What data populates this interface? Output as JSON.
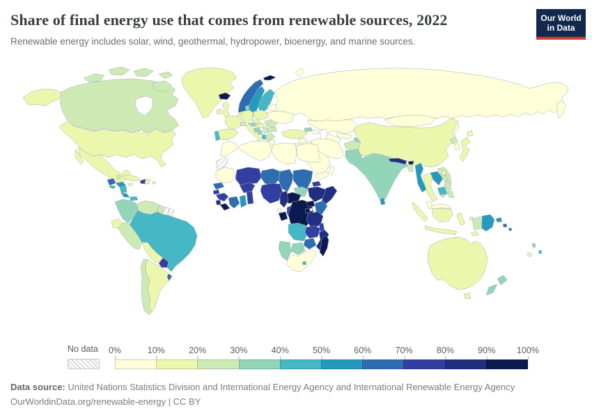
{
  "header": {
    "title": "Share of final energy use that comes from renewable sources, 2022",
    "subtitle": "Renewable energy includes solar, wind, geothermal, hydropower, bioenergy, and marine sources."
  },
  "logo": {
    "line1": "Our World",
    "line2": "in Data",
    "bg_color": "#12294b",
    "accent_color": "#d93a35"
  },
  "footer": {
    "source_label": "Data source:",
    "source_text": " United Nations Statistics Division and International Energy Agency and International Renewable Energy Agency",
    "url": "OurWorldinData.org/renewable-energy",
    "separator": " | ",
    "license": "CC BY"
  },
  "chart_data": {
    "type": "choropleth",
    "title": "Share of final energy use that comes from renewable sources, 2022",
    "unit": "%",
    "legend": {
      "no_data_label": "No data",
      "ticks": [
        "0%",
        "10%",
        "20%",
        "30%",
        "40%",
        "50%",
        "60%",
        "70%",
        "80%",
        "90%",
        "100%"
      ],
      "bucket_ranges": [
        "0-10%",
        "10-20%",
        "20-30%",
        "30-40%",
        "40-50%",
        "50-60%",
        "60-70%",
        "70-80%",
        "80-90%",
        "90-100%"
      ],
      "colors": [
        "#feffd8",
        "#ecf7ae",
        "#cdeab5",
        "#93d5b8",
        "#45b7c5",
        "#2599be",
        "#2e6db0",
        "#333fa0",
        "#202f80",
        "#0c1a50"
      ]
    },
    "regions": [
      {
        "id": "alaska",
        "name": "Alaska (United States)",
        "bucket": 1
      },
      {
        "id": "canada",
        "name": "Canada",
        "bucket": 2
      },
      {
        "id": "arctic1",
        "name": "Canadian Arctic Islands",
        "bucket": 2
      },
      {
        "id": "arctic2",
        "name": "Canadian Arctic Islands",
        "bucket": 2
      },
      {
        "id": "arctic3",
        "name": "Canadian Arctic Islands",
        "bucket": 2
      },
      {
        "id": "arctic4",
        "name": "Canadian Arctic Islands",
        "bucket": 2
      },
      {
        "id": "baffin",
        "name": "Baffin Island",
        "bucket": 2
      },
      {
        "id": "greenland",
        "name": "Greenland",
        "bucket": 1
      },
      {
        "id": "usa",
        "name": "United States",
        "bucket": 1
      },
      {
        "id": "baja",
        "name": "Baja California (Mexico)",
        "bucket": 1
      },
      {
        "id": "mexico",
        "name": "Mexico",
        "bucket": 1
      },
      {
        "id": "guatemala",
        "name": "Guatemala",
        "bucket": 6
      },
      {
        "id": "belize",
        "name": "Belize",
        "bucket": 2
      },
      {
        "id": "elsalvador",
        "name": "El Salvador",
        "bucket": 4
      },
      {
        "id": "honduras",
        "name": "Honduras",
        "bucket": 5
      },
      {
        "id": "nicaragua",
        "name": "Nicaragua",
        "bucket": 4
      },
      {
        "id": "costarica",
        "name": "Costa Rica",
        "bucket": 5
      },
      {
        "id": "panama",
        "name": "Panama",
        "bucket": 4
      },
      {
        "id": "cuba",
        "name": "Cuba",
        "bucket": 1
      },
      {
        "id": "jamaica",
        "name": "Jamaica",
        "bucket": 1
      },
      {
        "id": "haiti",
        "name": "Haiti",
        "bucket": 7
      },
      {
        "id": "domrep",
        "name": "Dominican Republic",
        "bucket": 1
      },
      {
        "id": "puertorico",
        "name": "Puerto Rico",
        "bucket": 1
      },
      {
        "id": "colombia",
        "name": "Colombia",
        "bucket": 3
      },
      {
        "id": "venezuela",
        "name": "Venezuela",
        "bucket": 2
      },
      {
        "id": "guyana",
        "name": "Guyana",
        "bucket": 2
      },
      {
        "id": "suriname",
        "name": "Suriname",
        "bucket": null
      },
      {
        "id": "frguiana",
        "name": "French Guiana",
        "bucket": null
      },
      {
        "id": "ecuador",
        "name": "Ecuador",
        "bucket": 1
      },
      {
        "id": "peru",
        "name": "Peru",
        "bucket": 2
      },
      {
        "id": "brazil",
        "name": "Brazil",
        "bucket": 4
      },
      {
        "id": "bolivia",
        "name": "Bolivia",
        "bucket": 1
      },
      {
        "id": "paraguay",
        "name": "Paraguay",
        "bucket": 7
      },
      {
        "id": "uruguay",
        "name": "Uruguay",
        "bucket": 6
      },
      {
        "id": "argentina",
        "name": "Argentina",
        "bucket": 1
      },
      {
        "id": "chile",
        "name": "Chile",
        "bucket": 2
      },
      {
        "id": "iceland",
        "name": "Iceland",
        "bucket": 9
      },
      {
        "id": "svalbard",
        "name": "Svalbard",
        "bucket": 9
      },
      {
        "id": "norway",
        "name": "Norway",
        "bucket": 6
      },
      {
        "id": "sweden",
        "name": "Sweden",
        "bucket": 5
      },
      {
        "id": "finland",
        "name": "Finland",
        "bucket": 4
      },
      {
        "id": "denmark",
        "name": "Denmark",
        "bucket": 3
      },
      {
        "id": "estonia",
        "name": "Estonia",
        "bucket": 3
      },
      {
        "id": "latvia",
        "name": "Latvia",
        "bucket": 4
      },
      {
        "id": "lithuania",
        "name": "Lithuania",
        "bucket": 2
      },
      {
        "id": "uk",
        "name": "United Kingdom",
        "bucket": 1
      },
      {
        "id": "ireland",
        "name": "Ireland",
        "bucket": 1
      },
      {
        "id": "france",
        "name": "France",
        "bucket": 1
      },
      {
        "id": "spain",
        "name": "Spain",
        "bucket": 1
      },
      {
        "id": "portugal",
        "name": "Portugal",
        "bucket": 4
      },
      {
        "id": "germany",
        "name": "Germany",
        "bucket": 1
      },
      {
        "id": "benelux",
        "name": "Belgium / Netherlands",
        "bucket": 1
      },
      {
        "id": "poland",
        "name": "Poland",
        "bucket": 1
      },
      {
        "id": "czech",
        "name": "Czechia",
        "bucket": 1
      },
      {
        "id": "italy",
        "name": "Italy",
        "bucket": 1
      },
      {
        "id": "sicily",
        "name": "Sicily (Italy)",
        "bucket": 1
      },
      {
        "id": "switzerland",
        "name": "Switzerland",
        "bucket": 2
      },
      {
        "id": "austria",
        "name": "Austria",
        "bucket": 3
      },
      {
        "id": "hungary",
        "name": "Hungary",
        "bucket": 1
      },
      {
        "id": "croatia",
        "name": "Croatia / Slovenia",
        "bucket": 3
      },
      {
        "id": "bosnia",
        "name": "Bosnia and Herzegovina",
        "bucket": 3
      },
      {
        "id": "serbia",
        "name": "Serbia",
        "bucket": 2
      },
      {
        "id": "albania",
        "name": "Albania / Montenegro",
        "bucket": 4
      },
      {
        "id": "romania",
        "name": "Romania",
        "bucket": 2
      },
      {
        "id": "bulgaria",
        "name": "Bulgaria",
        "bucket": 2
      },
      {
        "id": "greece",
        "name": "Greece",
        "bucket": 2
      },
      {
        "id": "ukraine",
        "name": "Ukraine",
        "bucket": 0
      },
      {
        "id": "belarus",
        "name": "Belarus",
        "bucket": 0
      },
      {
        "id": "turkey",
        "name": "Turkey",
        "bucket": 1
      },
      {
        "id": "georgia",
        "name": "Georgia",
        "bucket": 3
      },
      {
        "id": "azerbaijan",
        "name": "Azerbaijan",
        "bucket": 0
      },
      {
        "id": "russia",
        "name": "Russia",
        "bucket": 0
      },
      {
        "id": "novayazemlya",
        "name": "Novaya Zemlya (Russia)",
        "bucket": 0
      },
      {
        "id": "kamchatka",
        "name": "Kamchatka (Russia)",
        "bucket": 0
      },
      {
        "id": "sakhalin",
        "name": "Sakhalin (Russia)",
        "bucket": 0
      },
      {
        "id": "kazakhstan",
        "name": "Kazakhstan",
        "bucket": 0
      },
      {
        "id": "uzbekistan",
        "name": "Uzbekistan",
        "bucket": 0
      },
      {
        "id": "turkmenistan",
        "name": "Turkmenistan",
        "bucket": 0
      },
      {
        "id": "kyrgyzstan",
        "name": "Kyrgyzstan",
        "bucket": 2
      },
      {
        "id": "tajikistan",
        "name": "Tajikistan",
        "bucket": 3
      },
      {
        "id": "syria",
        "name": "Syria",
        "bucket": 0
      },
      {
        "id": "iraq",
        "name": "Iraq",
        "bucket": 0
      },
      {
        "id": "jordanisrael",
        "name": "Jordan / Israel",
        "bucket": 0
      },
      {
        "id": "saudi",
        "name": "Saudi Arabia",
        "bucket": 0
      },
      {
        "id": "yemen",
        "name": "Yemen",
        "bucket": 0
      },
      {
        "id": "oman",
        "name": "Oman",
        "bucket": 0
      },
      {
        "id": "iran",
        "name": "Iran",
        "bucket": 0
      },
      {
        "id": "afghanistan",
        "name": "Afghanistan",
        "bucket": 2
      },
      {
        "id": "pakistan",
        "name": "Pakistan",
        "bucket": 3
      },
      {
        "id": "india",
        "name": "India",
        "bucket": 3
      },
      {
        "id": "nepal",
        "name": "Nepal",
        "bucket": 8
      },
      {
        "id": "bhutan",
        "name": "Bhutan",
        "bucket": 9
      },
      {
        "id": "bangladesh",
        "name": "Bangladesh",
        "bucket": 2
      },
      {
        "id": "srilanka",
        "name": "Sri Lanka",
        "bucket": 5
      },
      {
        "id": "myanmar",
        "name": "Myanmar",
        "bucket": 5
      },
      {
        "id": "thailand",
        "name": "Thailand",
        "bucket": 1
      },
      {
        "id": "laos",
        "name": "Laos",
        "bucket": 5
      },
      {
        "id": "vietnam",
        "name": "Vietnam",
        "bucket": 2
      },
      {
        "id": "cambodia",
        "name": "Cambodia",
        "bucket": 4
      },
      {
        "id": "malaysia",
        "name": "Malaysia",
        "bucket": 0
      },
      {
        "id": "china",
        "name": "China",
        "bucket": 1
      },
      {
        "id": "mongolia",
        "name": "Mongolia",
        "bucket": 0
      },
      {
        "id": "nkorea",
        "name": "North Korea",
        "bucket": 2
      },
      {
        "id": "skorea",
        "name": "South Korea",
        "bucket": 0
      },
      {
        "id": "japan",
        "name": "Japan",
        "bucket": 1
      },
      {
        "id": "hokkaido",
        "name": "Hokkaido (Japan)",
        "bucket": 1
      },
      {
        "id": "taiwan",
        "name": "Taiwan",
        "bucket": 1
      },
      {
        "id": "ph1",
        "name": "Philippines",
        "bucket": 2
      },
      {
        "id": "ph2",
        "name": "Philippines",
        "bucket": 2
      },
      {
        "id": "ph3",
        "name": "Philippines",
        "bucket": 2
      },
      {
        "id": "sumatra",
        "name": "Sumatra (Indonesia)",
        "bucket": 1
      },
      {
        "id": "javabali",
        "name": "Java (Indonesia)",
        "bucket": 1
      },
      {
        "id": "borneomy",
        "name": "Malaysian Borneo",
        "bucket": 0
      },
      {
        "id": "kalimantan",
        "name": "Kalimantan (Indonesia)",
        "bucket": 1
      },
      {
        "id": "sulawesi",
        "name": "Sulawesi (Indonesia)",
        "bucket": 1
      },
      {
        "id": "moluccas1",
        "name": "Maluku (Indonesia)",
        "bucket": 1
      },
      {
        "id": "moluccas2",
        "name": "Maluku (Indonesia)",
        "bucket": 1
      },
      {
        "id": "timor",
        "name": "Timor",
        "bucket": 1
      },
      {
        "id": "westpapua",
        "name": "West Papua (Indonesia)",
        "bucket": 2
      },
      {
        "id": "png",
        "name": "Papua New Guinea",
        "bucket": 5
      },
      {
        "id": "newbritain",
        "name": "New Britain (PNG)",
        "bucket": 5
      },
      {
        "id": "solomon1",
        "name": "Solomon Islands",
        "bucket": 6
      },
      {
        "id": "solomon2",
        "name": "Solomon Islands",
        "bucket": 6
      },
      {
        "id": "vanuatu",
        "name": "Vanuatu",
        "bucket": 3
      },
      {
        "id": "fiji",
        "name": "Fiji",
        "bucket": 4
      },
      {
        "id": "newcaledonia",
        "name": "New Caledonia",
        "bucket": 1
      },
      {
        "id": "australia",
        "name": "Australia",
        "bucket": 1
      },
      {
        "id": "tasmania",
        "name": "Tasmania (Australia)",
        "bucket": 1
      },
      {
        "id": "nznorth",
        "name": "New Zealand (North Island)",
        "bucket": 3
      },
      {
        "id": "nzsouth",
        "name": "New Zealand (South Island)",
        "bucket": 3
      },
      {
        "id": "morocco",
        "name": "Morocco",
        "bucket": 0
      },
      {
        "id": "wsahara",
        "name": "Western Sahara",
        "bucket": null
      },
      {
        "id": "algeria",
        "name": "Algeria",
        "bucket": 0
      },
      {
        "id": "tunisia",
        "name": "Tunisia",
        "bucket": 0
      },
      {
        "id": "libya",
        "name": "Libya",
        "bucket": 0
      },
      {
        "id": "egypt",
        "name": "Egypt",
        "bucket": 0
      },
      {
        "id": "mauritania",
        "name": "Mauritania",
        "bucket": 0
      },
      {
        "id": "senegal",
        "name": "Senegal",
        "bucket": 6
      },
      {
        "id": "guineabissau",
        "name": "Guinea-Bissau",
        "bucket": 7
      },
      {
        "id": "guinea",
        "name": "Guinea",
        "bucket": 7
      },
      {
        "id": "sierraleone",
        "name": "Sierra Leone",
        "bucket": 8
      },
      {
        "id": "liberia",
        "name": "Liberia",
        "bucket": 9
      },
      {
        "id": "ivorycoast",
        "name": "Cote d'Ivoire",
        "bucket": 6
      },
      {
        "id": "ghana",
        "name": "Ghana",
        "bucket": 5
      },
      {
        "id": "togobenin",
        "name": "Togo / Benin",
        "bucket": 7
      },
      {
        "id": "burkina",
        "name": "Burkina Faso",
        "bucket": 7
      },
      {
        "id": "mali",
        "name": "Mali",
        "bucket": 7
      },
      {
        "id": "niger",
        "name": "Niger",
        "bucket": 6
      },
      {
        "id": "nigeria",
        "name": "Nigeria",
        "bucket": 7
      },
      {
        "id": "chad",
        "name": "Chad",
        "bucket": 6
      },
      {
        "id": "sudan",
        "name": "Sudan",
        "bucket": 6
      },
      {
        "id": "eritrea",
        "name": "Eritrea",
        "bucket": 7
      },
      {
        "id": "ethiopia",
        "name": "Ethiopia",
        "bucket": 8
      },
      {
        "id": "somalia",
        "name": "Somalia",
        "bucket": 8
      },
      {
        "id": "southsudan",
        "name": "South Sudan",
        "bucket": 3
      },
      {
        "id": "car",
        "name": "Central African Republic",
        "bucket": 9
      },
      {
        "id": "cameroon",
        "name": "Cameroon",
        "bucket": 8
      },
      {
        "id": "eqguinea",
        "name": "Equatorial Guinea",
        "bucket": 0
      },
      {
        "id": "gabon",
        "name": "Gabon",
        "bucket": 9
      },
      {
        "id": "congo",
        "name": "Congo",
        "bucket": 7
      },
      {
        "id": "drc",
        "name": "Democratic Republic of Congo",
        "bucket": 9
      },
      {
        "id": "uganda",
        "name": "Uganda",
        "bucket": 9
      },
      {
        "id": "kenya",
        "name": "Kenya",
        "bucket": 6
      },
      {
        "id": "rwandaburundi",
        "name": "Rwanda / Burundi",
        "bucket": 9
      },
      {
        "id": "tanzania",
        "name": "Tanzania",
        "bucket": 8
      },
      {
        "id": "angola",
        "name": "Angola",
        "bucket": 4
      },
      {
        "id": "zambia",
        "name": "Zambia",
        "bucket": 7
      },
      {
        "id": "malawi",
        "name": "Malawi",
        "bucket": 7
      },
      {
        "id": "mozambique",
        "name": "Mozambique",
        "bucket": 8
      },
      {
        "id": "zimbabwe",
        "name": "Zimbabwe",
        "bucket": 6
      },
      {
        "id": "botswana",
        "name": "Botswana",
        "bucket": 3
      },
      {
        "id": "namibia",
        "name": "Namibia",
        "bucket": 3
      },
      {
        "id": "southafrica",
        "name": "South Africa",
        "bucket": 0
      },
      {
        "id": "lesotho",
        "name": "Lesotho",
        "bucket": 4
      },
      {
        "id": "madagascar",
        "name": "Madagascar",
        "bucket": 9
      }
    ]
  }
}
